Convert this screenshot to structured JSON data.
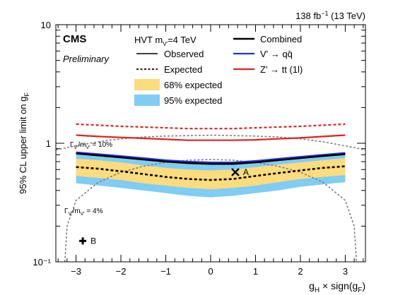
{
  "chart_data": {
    "type": "line",
    "lumi_label": "138 fb⁻¹ (13 TeV)",
    "experiment": "CMS",
    "status": "Preliminary",
    "ylabel": "95% CL upper limit on g_F",
    "xlabel": "g_H × sign(g_F)",
    "xlim": [
      -3.45,
      3.45
    ],
    "ylim": [
      0.1,
      10
    ],
    "yscale": "log",
    "x_ticks": [
      "−3",
      "−2",
      "−1",
      "0",
      "1",
      "2",
      "3"
    ],
    "x_tick_values": [
      -3,
      -2,
      -1,
      0,
      1,
      2,
      3
    ],
    "y_ticks": [
      "10⁻¹",
      "1",
      "10"
    ],
    "y_tick_values": [
      0.1,
      1,
      10
    ],
    "legend_header": "HVT m_V' = 4 TeV",
    "legend": {
      "observed": "Observed",
      "expected": "Expected",
      "band68": "68% expected",
      "band95": "95% expected",
      "combined": "Combined",
      "vprime": "V' → qq̄",
      "zprime": "Z' → tt (1l)"
    },
    "colors": {
      "combined": "#000000",
      "vprime": "#2233dd",
      "zprime": "#dd2222",
      "band68": "#fddc7e",
      "band95": "#7fcdf5",
      "width_contour": "#777777"
    },
    "x": [
      -3.0,
      -2.5,
      -2.0,
      -1.5,
      -1.0,
      -0.5,
      0.0,
      0.5,
      1.0,
      1.5,
      2.0,
      2.5,
      3.0
    ],
    "series": [
      {
        "name": "Combined",
        "kind": "observed",
        "values": [
          0.82,
          0.79,
          0.76,
          0.73,
          0.7,
          0.68,
          0.67,
          0.67,
          0.69,
          0.72,
          0.75,
          0.78,
          0.81
        ]
      },
      {
        "name": "Combined",
        "kind": "expected",
        "values": [
          0.63,
          0.61,
          0.58,
          0.55,
          0.52,
          0.5,
          0.49,
          0.5,
          0.53,
          0.56,
          0.59,
          0.62,
          0.64
        ]
      },
      {
        "name": "V' → qq̄",
        "kind": "observed",
        "values": [
          0.84,
          0.81,
          0.78,
          0.75,
          0.72,
          0.7,
          0.69,
          0.69,
          0.71,
          0.74,
          0.77,
          0.8,
          0.83
        ]
      },
      {
        "name": "Z' → tt (1l)",
        "kind": "observed",
        "values": [
          1.17,
          1.14,
          1.12,
          1.1,
          1.08,
          1.06,
          1.06,
          1.06,
          1.07,
          1.09,
          1.11,
          1.14,
          1.17
        ]
      },
      {
        "name": "Z' → tt (1l)",
        "kind": "expected",
        "values": [
          1.45,
          1.42,
          1.39,
          1.37,
          1.35,
          1.33,
          1.33,
          1.33,
          1.35,
          1.37,
          1.39,
          1.42,
          1.45
        ]
      }
    ],
    "band68": {
      "lo": [
        0.53,
        0.51,
        0.49,
        0.46,
        0.44,
        0.42,
        0.41,
        0.42,
        0.44,
        0.47,
        0.5,
        0.52,
        0.54
      ],
      "hi": [
        0.74,
        0.72,
        0.69,
        0.65,
        0.62,
        0.6,
        0.59,
        0.6,
        0.63,
        0.66,
        0.69,
        0.72,
        0.75
      ]
    },
    "band95": {
      "lo": [
        0.46,
        0.44,
        0.42,
        0.4,
        0.38,
        0.36,
        0.35,
        0.36,
        0.38,
        0.4,
        0.43,
        0.45,
        0.47
      ],
      "hi": [
        0.81,
        0.79,
        0.76,
        0.72,
        0.69,
        0.67,
        0.66,
        0.67,
        0.7,
        0.73,
        0.76,
        0.79,
        0.82
      ]
    },
    "width_contours": [
      {
        "label": "Γ_V'/m_V' = 10%",
        "x": [
          -3.45,
          -3.0,
          -2.5,
          -2.0,
          -1.5,
          -1.0,
          -0.5,
          0.0,
          0.5,
          1.0,
          1.5,
          2.0,
          2.5,
          3.0,
          3.45
        ],
        "y": [
          0.88,
          0.95,
          1.03,
          1.09,
          1.13,
          1.15,
          1.16,
          1.17,
          1.16,
          1.15,
          1.13,
          1.09,
          1.03,
          0.95,
          0.88
        ]
      },
      {
        "label": "Γ_V'/m_V' = 4%",
        "x": [
          -3.25,
          -3.2,
          -3.0,
          -2.5,
          -2.0,
          -1.5,
          -1.0,
          -0.5,
          0.0,
          0.5,
          1.0,
          1.5,
          2.0,
          2.5,
          3.0,
          3.2,
          3.25
        ],
        "y": [
          0.1,
          0.2,
          0.33,
          0.47,
          0.57,
          0.64,
          0.69,
          0.72,
          0.73,
          0.72,
          0.69,
          0.64,
          0.57,
          0.47,
          0.33,
          0.2,
          0.1
        ]
      }
    ],
    "points": [
      {
        "label": "A",
        "x": 0.55,
        "y": 0.57
      },
      {
        "label": "B",
        "x": -2.85,
        "y": 0.15
      }
    ]
  }
}
